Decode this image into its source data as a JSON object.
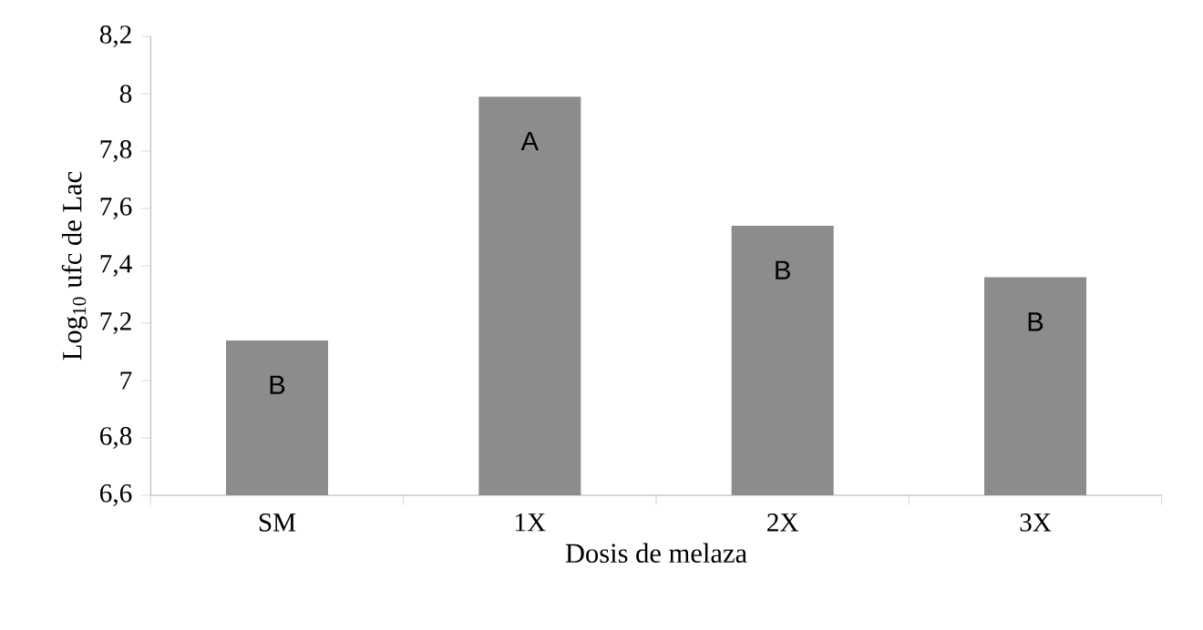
{
  "chart_data": {
    "type": "bar",
    "xlabel": "Dosis de melaza",
    "ylabel": "Log$_{10}$ ufc de Lac",
    "categories": [
      "SM",
      "1X",
      "2X",
      "3X"
    ],
    "values": [
      7.14,
      7.99,
      7.54,
      7.36
    ],
    "color": "#8c8c8c",
    "ylim": [
      6.6,
      8.2
    ],
    "yticks": [
      {
        "value": 6.6,
        "label": "6,6"
      },
      {
        "value": 6.8,
        "label": "6,8"
      },
      7,
      {
        "value": 7.2,
        "label": "7,2"
      },
      {
        "value": 7.4,
        "label": "7,4"
      },
      {
        "value": 7.6,
        "label": "7,6"
      },
      {
        "value": 7.8,
        "label": "7,8"
      },
      8,
      {
        "value": 8.2,
        "label": "8,2"
      }
    ],
    "grid": false,
    "annotations": [
      "B",
      "A",
      "B",
      "B"
    ]
  }
}
